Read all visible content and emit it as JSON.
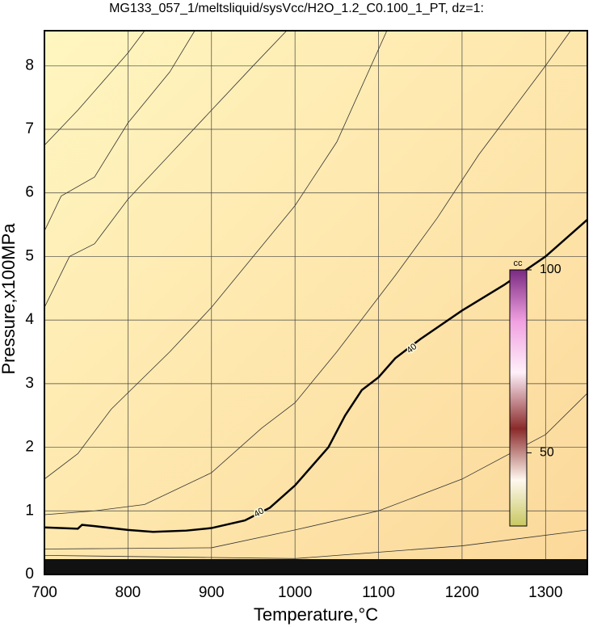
{
  "chart_data": {
    "type": "contour",
    "title": "MG133_057_1/meltsliquid/sysVcc/H2O_1.2_C0.100_1_PT, dz=1:",
    "x_label": "Temperature,°C",
    "y_label": "Pressure,x100MPa",
    "xlim": [
      700,
      1350
    ],
    "ylim": [
      0,
      8.55
    ],
    "xticks": [
      700,
      800,
      900,
      1000,
      1100,
      1200,
      1300
    ],
    "yticks": [
      0,
      1,
      2,
      3,
      4,
      5,
      6,
      7,
      8
    ],
    "grid": true,
    "colorbar": {
      "label": "cc",
      "lim": [
        30,
        100
      ],
      "ticks": [
        50,
        100
      ]
    },
    "series": [
      {
        "level": 40,
        "color": "#000000",
        "x": [
          700,
          740,
          745,
          760,
          800,
          830,
          870,
          900,
          940,
          970,
          1000,
          1040,
          1060,
          1080,
          1100,
          1120,
          1150,
          1200,
          1250,
          1300,
          1350
        ],
        "values": [
          0.74,
          0.72,
          0.78,
          0.76,
          0.7,
          0.67,
          0.69,
          0.73,
          0.85,
          1.05,
          1.4,
          2.0,
          2.5,
          2.9,
          3.1,
          3.4,
          3.7,
          4.15,
          4.55,
          5.0,
          5.58
        ]
      },
      {
        "color": "#333333",
        "x": [
          700,
          740,
          760,
          800,
          820
        ],
        "values": [
          6.75,
          7.3,
          7.6,
          8.2,
          8.55
        ]
      },
      {
        "color": "#333333",
        "x": [
          700,
          720,
          760,
          800,
          850,
          880
        ],
        "values": [
          5.4,
          5.95,
          6.25,
          7.1,
          7.9,
          8.55
        ]
      },
      {
        "color": "#333333",
        "x": [
          700,
          730,
          760,
          800,
          850,
          900,
          950,
          990
        ],
        "values": [
          4.2,
          5.0,
          5.2,
          5.9,
          6.6,
          7.3,
          8.0,
          8.55
        ]
      },
      {
        "color": "#333333",
        "x": [
          700,
          740,
          780,
          850,
          900,
          950,
          1000,
          1050,
          1110
        ],
        "values": [
          1.5,
          1.9,
          2.6,
          3.5,
          4.2,
          5.0,
          5.8,
          6.8,
          8.55
        ]
      },
      {
        "color": "#333333",
        "x": [
          700,
          760,
          820,
          900,
          960,
          1000,
          1050,
          1120,
          1170,
          1220,
          1300,
          1330
        ],
        "values": [
          0.94,
          1.0,
          1.1,
          1.6,
          2.3,
          2.7,
          3.5,
          4.7,
          5.6,
          6.6,
          8.0,
          8.55
        ]
      },
      {
        "color": "#333333",
        "x": [
          700,
          900,
          1000,
          1100,
          1200,
          1300,
          1350
        ],
        "values": [
          0.4,
          0.42,
          0.7,
          1.0,
          1.5,
          2.2,
          2.85
        ]
      },
      {
        "color": "#333333",
        "x": [
          700,
          1000,
          1200,
          1350
        ],
        "values": [
          0.3,
          0.25,
          0.45,
          0.7
        ]
      }
    ]
  }
}
